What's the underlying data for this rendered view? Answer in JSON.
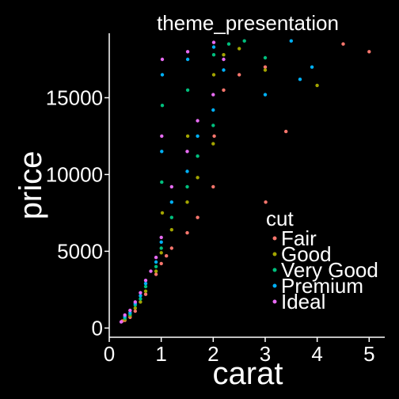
{
  "chart_data": {
    "type": "scatter",
    "title": "theme_presentation",
    "xlabel": "carat",
    "ylabel": "price",
    "xlim": [
      0,
      5.3
    ],
    "ylim": [
      -600,
      19200
    ],
    "x_ticks": [
      0,
      1,
      2,
      3,
      4,
      5
    ],
    "y_ticks": [
      0,
      5000,
      10000,
      15000
    ],
    "legend_title": "cut",
    "legend_position": "inside-right",
    "background": "#000000",
    "foreground": "#ffffff",
    "series": [
      {
        "name": "Fair",
        "color": "#F8766D",
        "points": [
          [
            0.25,
            450
          ],
          [
            0.3,
            500
          ],
          [
            0.4,
            700
          ],
          [
            0.5,
            1100
          ],
          [
            0.7,
            2200
          ],
          [
            0.9,
            3500
          ],
          [
            1.0,
            4200
          ],
          [
            1.1,
            4700
          ],
          [
            1.2,
            5200
          ],
          [
            1.5,
            6200
          ],
          [
            1.7,
            7200
          ],
          [
            2.0,
            9200
          ],
          [
            2.02,
            12500
          ],
          [
            2.2,
            15500
          ],
          [
            2.5,
            16500
          ],
          [
            3.0,
            17000
          ],
          [
            3.01,
            8200
          ],
          [
            3.4,
            12800
          ],
          [
            4.5,
            18500
          ],
          [
            5.0,
            18000
          ]
        ]
      },
      {
        "name": "Good",
        "color": "#A3A500",
        "points": [
          [
            0.3,
            550
          ],
          [
            0.4,
            800
          ],
          [
            0.5,
            1300
          ],
          [
            0.6,
            1700
          ],
          [
            0.7,
            2400
          ],
          [
            0.9,
            3700
          ],
          [
            1.0,
            4900
          ],
          [
            1.02,
            7500
          ],
          [
            1.2,
            6400
          ],
          [
            1.5,
            8200
          ],
          [
            1.51,
            12500
          ],
          [
            1.7,
            9800
          ],
          [
            2.0,
            12000
          ],
          [
            2.01,
            16500
          ],
          [
            2.2,
            17800
          ],
          [
            2.5,
            18200
          ],
          [
            3.0,
            16800
          ],
          [
            4.0,
            15800
          ]
        ]
      },
      {
        "name": "Very Good",
        "color": "#00BF7D",
        "points": [
          [
            0.3,
            650
          ],
          [
            0.4,
            900
          ],
          [
            0.5,
            1500
          ],
          [
            0.6,
            1900
          ],
          [
            0.7,
            2700
          ],
          [
            0.9,
            4000
          ],
          [
            1.0,
            5200
          ],
          [
            1.01,
            9500
          ],
          [
            1.02,
            14500
          ],
          [
            1.2,
            7200
          ],
          [
            1.5,
            9200
          ],
          [
            1.51,
            15500
          ],
          [
            1.7,
            11200
          ],
          [
            2.0,
            13200
          ],
          [
            2.01,
            17800
          ],
          [
            2.3,
            18500
          ],
          [
            2.6,
            18700
          ],
          [
            3.0,
            17600
          ]
        ]
      },
      {
        "name": "Premium",
        "color": "#00B0F6",
        "points": [
          [
            0.3,
            750
          ],
          [
            0.4,
            1000
          ],
          [
            0.5,
            1600
          ],
          [
            0.6,
            2100
          ],
          [
            0.7,
            2900
          ],
          [
            0.9,
            4300
          ],
          [
            1.0,
            5600
          ],
          [
            1.01,
            11500
          ],
          [
            1.02,
            16500
          ],
          [
            1.2,
            8200
          ],
          [
            1.5,
            10200
          ],
          [
            1.51,
            17500
          ],
          [
            1.7,
            12500
          ],
          [
            2.0,
            14200
          ],
          [
            2.01,
            18300
          ],
          [
            2.2,
            16800
          ],
          [
            3.0,
            15200
          ],
          [
            3.5,
            18700
          ],
          [
            3.67,
            16200
          ],
          [
            3.9,
            17000
          ]
        ]
      },
      {
        "name": "Ideal",
        "color": "#E76BF3",
        "points": [
          [
            0.23,
            400
          ],
          [
            0.3,
            850
          ],
          [
            0.4,
            1150
          ],
          [
            0.5,
            1700
          ],
          [
            0.6,
            2300
          ],
          [
            0.7,
            3100
          ],
          [
            0.8,
            3700
          ],
          [
            0.9,
            4600
          ],
          [
            1.0,
            5900
          ],
          [
            1.01,
            12500
          ],
          [
            1.02,
            17500
          ],
          [
            1.2,
            9200
          ],
          [
            1.5,
            11500
          ],
          [
            1.51,
            18000
          ],
          [
            1.7,
            13500
          ],
          [
            2.0,
            15200
          ],
          [
            2.01,
            18600
          ],
          [
            2.2,
            17500
          ]
        ]
      }
    ]
  }
}
